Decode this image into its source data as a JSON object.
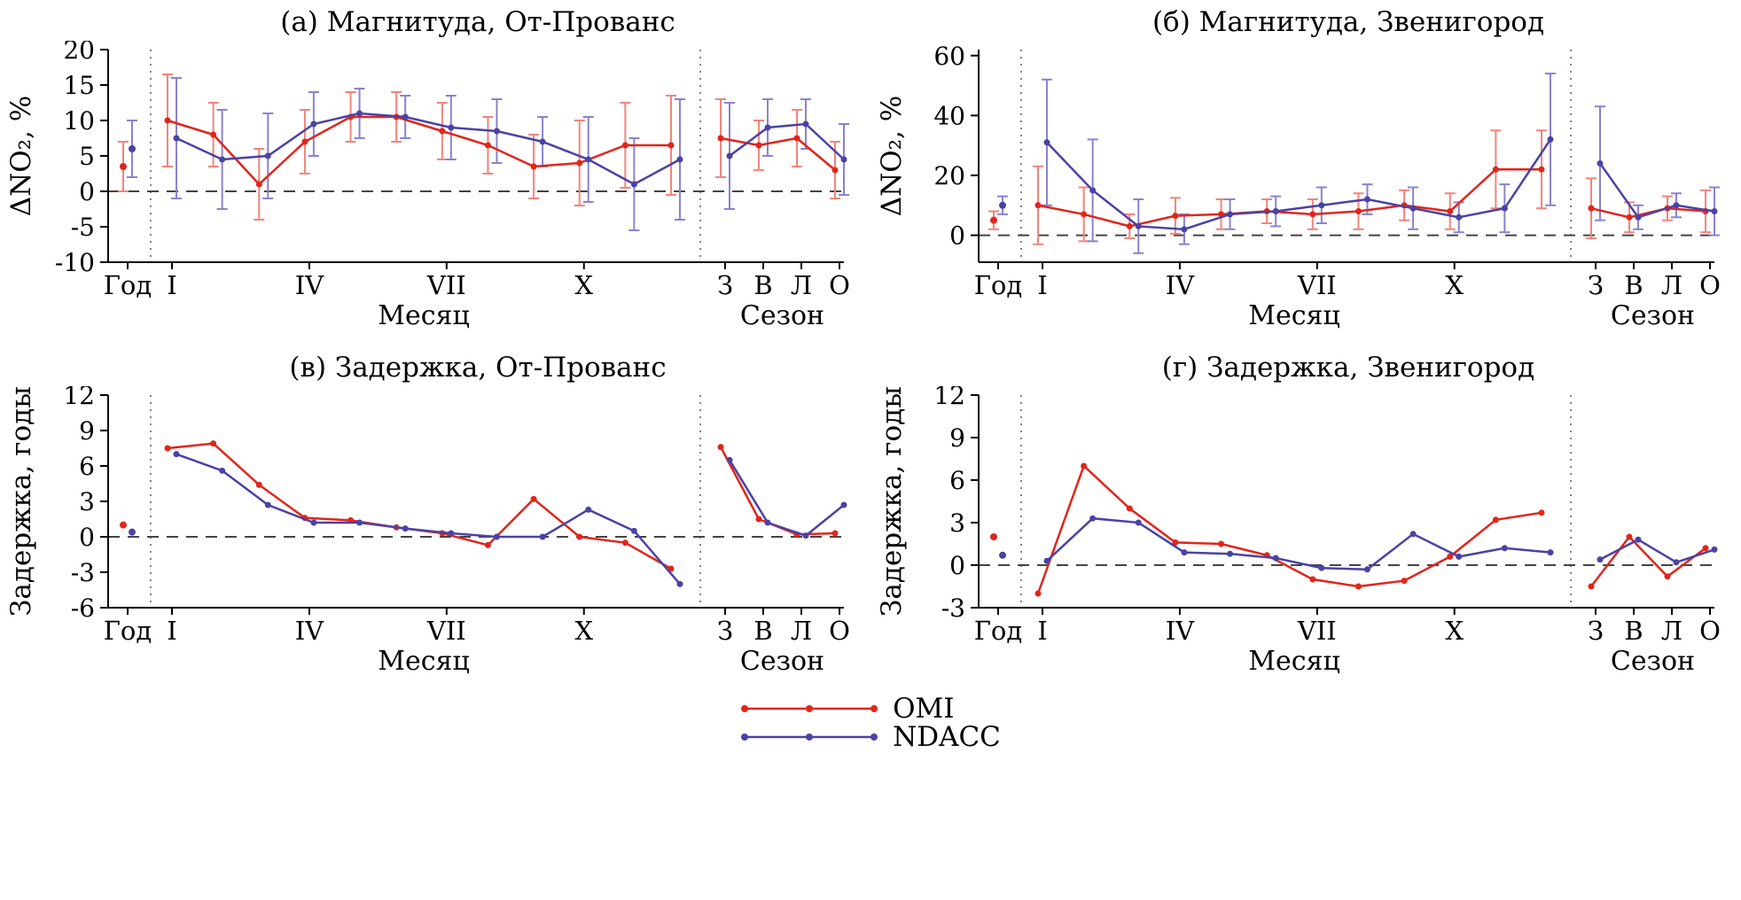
{
  "figure": {
    "background": "#ffffff"
  },
  "legend": {
    "items": [
      {
        "label": "OMI",
        "color": "#e1251b"
      },
      {
        "label": "NDACC",
        "color": "#4a42a5"
      }
    ]
  },
  "chart_data": [
    {
      "type": "line",
      "title": "(а) Магнитуда, От-Прованс",
      "ylabel": "ΔNO₂, %",
      "ylim": [
        -10,
        20
      ],
      "yticks": [
        -10,
        -5,
        0,
        5,
        10,
        15,
        20
      ],
      "zero_line": true,
      "x_axis": {
        "year_label": "Год",
        "month_tick_labels": [
          {
            "index": 0,
            "label": "I"
          },
          {
            "index": 3,
            "label": "IV"
          },
          {
            "index": 6,
            "label": "VII"
          },
          {
            "index": 9,
            "label": "X"
          }
        ],
        "months_caption": "Месяц",
        "season_labels": [
          "З",
          "В",
          "Л",
          "О"
        ],
        "seasons_caption": "Сезон"
      },
      "series": [
        {
          "name": "OMI",
          "color": "#e1251b",
          "errbar_color": "#f0857b",
          "year": 3.5,
          "year_err": 3.5,
          "months": [
            10,
            8,
            1,
            7,
            10.5,
            10.5,
            8.5,
            6.5,
            3.5,
            4,
            6.5,
            6.5
          ],
          "months_err": [
            6.5,
            4.5,
            5,
            4.5,
            3.5,
            3.5,
            4,
            4,
            4.5,
            6,
            6,
            7
          ],
          "seasons": [
            7.5,
            6.5,
            7.5,
            3
          ],
          "seasons_err": [
            5.5,
            3.5,
            4,
            4
          ]
        },
        {
          "name": "NDACC",
          "color": "#4a42a5",
          "errbar_color": "#8a82cf",
          "year": 6,
          "year_err": 4,
          "months": [
            7.5,
            4.5,
            5,
            9.5,
            11,
            10.5,
            9,
            8.5,
            7,
            4.5,
            1,
            4.5
          ],
          "months_err": [
            8.5,
            7,
            6,
            4.5,
            3.5,
            3,
            4.5,
            4.5,
            3.5,
            6,
            6.5,
            8.5
          ],
          "seasons": [
            5,
            9,
            9.5,
            4.5
          ],
          "seasons_err": [
            7.5,
            4,
            3.5,
            5
          ]
        }
      ]
    },
    {
      "type": "line",
      "title": "(б) Магнитуда, Звенигород",
      "ylabel": "ΔNO₂, %",
      "ylim": [
        -9,
        62
      ],
      "yticks": [
        0,
        20,
        40,
        60
      ],
      "zero_line": true,
      "x_axis": {
        "year_label": "Год",
        "month_tick_labels": [
          {
            "index": 0,
            "label": "I"
          },
          {
            "index": 3,
            "label": "IV"
          },
          {
            "index": 6,
            "label": "VII"
          },
          {
            "index": 9,
            "label": "X"
          }
        ],
        "months_caption": "Месяц",
        "season_labels": [
          "З",
          "В",
          "Л",
          "О"
        ],
        "seasons_caption": "Сезон"
      },
      "series": [
        {
          "name": "OMI",
          "color": "#e1251b",
          "errbar_color": "#f0857b",
          "year": 5,
          "year_err": 3,
          "months": [
            10,
            7,
            3,
            6.5,
            7,
            8,
            7,
            8,
            10,
            8,
            22,
            22
          ],
          "months_err": [
            13,
            9,
            4,
            6,
            5,
            4,
            5,
            6,
            5,
            6,
            13,
            13
          ],
          "seasons": [
            9,
            6,
            9,
            8
          ],
          "seasons_err": [
            10,
            5,
            4,
            7
          ]
        },
        {
          "name": "NDACC",
          "color": "#4a42a5",
          "errbar_color": "#8a82cf",
          "year": 10,
          "year_err": 3,
          "months": [
            31,
            15,
            3,
            2,
            7,
            8,
            10,
            12,
            9,
            6,
            9,
            32
          ],
          "months_err": [
            21,
            17,
            9,
            5,
            5,
            5,
            6,
            5,
            7,
            5,
            8,
            22
          ],
          "seasons": [
            24,
            6,
            10,
            8
          ],
          "seasons_err": [
            19,
            4,
            4,
            8
          ]
        }
      ]
    },
    {
      "type": "line",
      "title": "(в) Задержка, От-Прованс",
      "ylabel": "Задержка, годы",
      "ylim": [
        -6,
        12
      ],
      "yticks": [
        -6,
        -3,
        0,
        3,
        6,
        9,
        12
      ],
      "zero_line": true,
      "x_axis": {
        "year_label": "Год",
        "month_tick_labels": [
          {
            "index": 0,
            "label": "I"
          },
          {
            "index": 3,
            "label": "IV"
          },
          {
            "index": 6,
            "label": "VII"
          },
          {
            "index": 9,
            "label": "X"
          }
        ],
        "months_caption": "Месяц",
        "season_labels": [
          "З",
          "В",
          "Л",
          "О"
        ],
        "seasons_caption": "Сезон"
      },
      "series": [
        {
          "name": "OMI",
          "color": "#e1251b",
          "errbar_color": "#f0857b",
          "year": 1,
          "months": [
            7.5,
            7.9,
            4.4,
            1.6,
            1.4,
            0.8,
            0.3,
            -0.7,
            3.2,
            0,
            -0.5,
            -2.7
          ],
          "seasons": [
            7.6,
            1.5,
            0.2,
            0.3
          ]
        },
        {
          "name": "NDACC",
          "color": "#4a42a5",
          "errbar_color": "#8a82cf",
          "year": 0.4,
          "months": [
            7,
            5.6,
            2.7,
            1.2,
            1.2,
            0.7,
            0.3,
            0,
            0,
            2.3,
            0.5,
            -4
          ],
          "seasons": [
            6.5,
            1.2,
            0.1,
            2.7
          ]
        }
      ]
    },
    {
      "type": "line",
      "title": "(г) Задержка, Звенигород",
      "ylabel": "Задержка, годы",
      "ylim": [
        -3,
        12
      ],
      "yticks": [
        -3,
        0,
        3,
        6,
        9,
        12
      ],
      "zero_line": true,
      "x_axis": {
        "year_label": "Год",
        "month_tick_labels": [
          {
            "index": 0,
            "label": "I"
          },
          {
            "index": 3,
            "label": "IV"
          },
          {
            "index": 6,
            "label": "VII"
          },
          {
            "index": 9,
            "label": "X"
          }
        ],
        "months_caption": "Месяц",
        "season_labels": [
          "З",
          "В",
          "Л",
          "О"
        ],
        "seasons_caption": "Сезон"
      },
      "series": [
        {
          "name": "OMI",
          "color": "#e1251b",
          "errbar_color": "#f0857b",
          "year": 2,
          "months": [
            -2,
            7,
            4,
            1.6,
            1.5,
            0.7,
            -1,
            -1.5,
            -1.1,
            0.6,
            3.2,
            3.7
          ],
          "seasons": [
            -1.5,
            2,
            -0.8,
            1.2
          ]
        },
        {
          "name": "NDACC",
          "color": "#4a42a5",
          "errbar_color": "#8a82cf",
          "year": 0.7,
          "months": [
            0.3,
            3.3,
            3,
            0.9,
            0.8,
            0.5,
            -0.2,
            -0.3,
            2.2,
            0.6,
            1.2,
            0.9
          ],
          "seasons": [
            0.4,
            1.8,
            0.2,
            1.1
          ]
        }
      ]
    }
  ]
}
